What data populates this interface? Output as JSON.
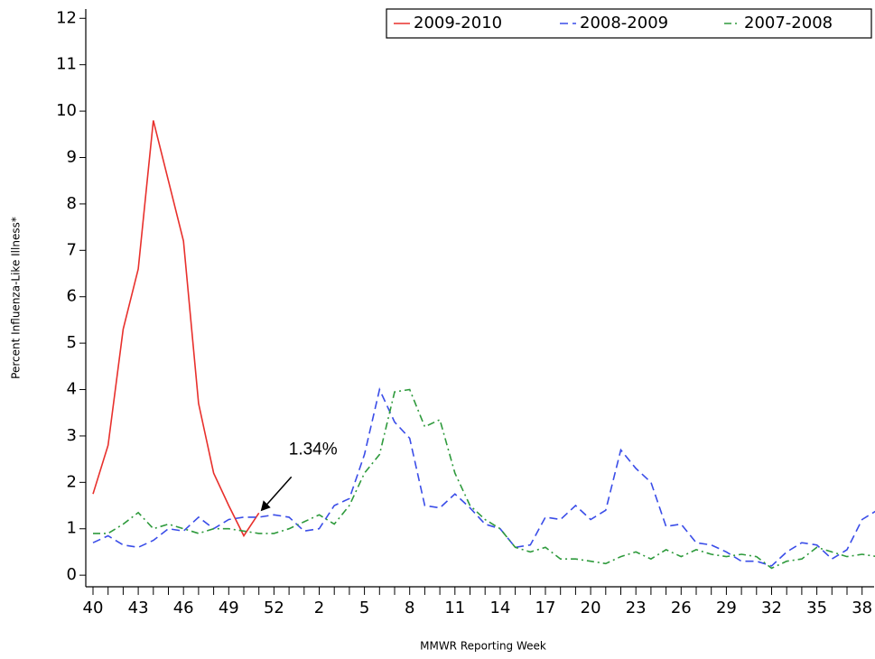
{
  "chart_data": {
    "type": "line",
    "x_label": "MMWR Reporting Week",
    "y_label": "Percent Influenza-Like Illness*",
    "categories": [
      "40",
      null,
      null,
      "43",
      null,
      null,
      "46",
      null,
      null,
      "49",
      null,
      null,
      "52",
      null,
      null,
      "2",
      null,
      null,
      "5",
      null,
      null,
      "8",
      null,
      null,
      "11",
      null,
      null,
      "14",
      null,
      null,
      "17",
      null,
      null,
      "20",
      null,
      null,
      "23",
      null,
      null,
      "26",
      null,
      null,
      "29",
      null,
      null,
      "32",
      null,
      null,
      "35",
      null,
      null,
      "38",
      null
    ],
    "ylim": [
      -0.25,
      12.2
    ],
    "yticks": [
      0,
      1,
      2,
      3,
      4,
      5,
      6,
      7,
      8,
      9,
      10,
      11,
      12
    ],
    "legend": "top-right",
    "series": [
      {
        "name": "2009-2010",
        "color": "#e8302c",
        "line_style": "solid",
        "values": [
          1.75,
          2.8,
          5.3,
          6.6,
          9.8,
          8.5,
          7.2,
          3.7,
          2.2,
          1.5,
          0.85,
          1.34,
          null,
          null,
          null,
          null,
          null,
          null,
          null,
          null,
          null,
          null,
          null,
          null,
          null,
          null,
          null,
          null,
          null,
          null,
          null,
          null,
          null,
          null,
          null,
          null,
          null,
          null,
          null,
          null,
          null,
          null,
          null,
          null,
          null,
          null,
          null,
          null,
          null,
          null,
          null,
          null,
          null
        ],
        "value_labels": [
          null,
          null,
          null,
          null,
          null,
          null,
          null,
          null,
          null,
          null,
          null,
          "1.34%",
          null,
          null,
          null,
          null,
          null,
          null,
          null,
          null,
          null,
          null,
          null,
          null,
          null,
          null,
          null,
          null,
          null,
          null,
          null,
          null,
          null,
          null,
          null,
          null,
          null,
          null,
          null,
          null,
          null,
          null,
          null,
          null,
          null,
          null,
          null,
          null,
          null,
          null,
          null,
          null,
          null
        ]
      },
      {
        "name": "2008-2009",
        "color": "#3a4de8",
        "line_style": "dashed",
        "values": [
          0.7,
          0.85,
          0.65,
          0.6,
          0.75,
          1.0,
          0.95,
          1.25,
          1.0,
          1.2,
          1.25,
          1.25,
          1.3,
          1.25,
          0.95,
          1.0,
          1.5,
          1.65,
          2.6,
          4.0,
          3.3,
          2.95,
          1.5,
          1.45,
          1.75,
          1.45,
          1.1,
          1.0,
          0.6,
          0.65,
          1.25,
          1.2,
          1.5,
          1.2,
          1.4,
          2.7,
          2.3,
          2.0,
          1.05,
          1.1,
          0.7,
          0.65,
          0.5,
          0.3,
          0.3,
          0.2,
          0.5,
          0.7,
          0.65,
          0.35,
          0.55,
          1.2,
          1.4
        ]
      },
      {
        "name": "2007-2008",
        "color": "#2e9a3c",
        "line_style": "dashdot",
        "values": [
          0.9,
          0.9,
          1.1,
          1.35,
          1.0,
          1.1,
          1.0,
          0.9,
          1.0,
          1.0,
          0.95,
          0.9,
          0.9,
          1.0,
          1.15,
          1.3,
          1.1,
          1.5,
          2.2,
          2.6,
          3.95,
          4.0,
          3.2,
          3.35,
          2.2,
          1.5,
          1.2,
          1.0,
          0.6,
          0.5,
          0.6,
          0.35,
          0.35,
          0.3,
          0.25,
          0.4,
          0.5,
          0.35,
          0.55,
          0.4,
          0.55,
          0.45,
          0.4,
          0.45,
          0.4,
          0.15,
          0.3,
          0.35,
          0.6,
          0.5,
          0.4,
          0.45,
          0.4
        ]
      }
    ]
  }
}
